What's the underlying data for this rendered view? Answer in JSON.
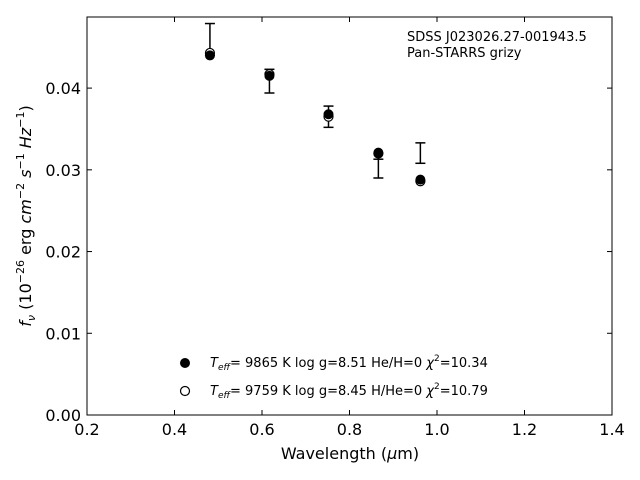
{
  "chart_data": {
    "type": "scatter",
    "xlabel_prefix": "Wavelength (",
    "xlabel_mu": "μ",
    "xlabel_suffix": "m)",
    "ylabel": {
      "f": "f",
      "nu": "ν",
      "open": " (10",
      "exp1": "−26",
      "erg": " erg ",
      "cm": "cm",
      "exp2": "−2",
      "s": " s",
      "exp3": "−1",
      "hz": " Hz",
      "exp4": "−1",
      "close": ")"
    },
    "xlim": [
      0.2,
      1.4
    ],
    "ylim": [
      0.0,
      0.0487
    ],
    "xticks": [
      "0.2",
      "0.4",
      "0.6",
      "0.8",
      "1.0",
      "1.2",
      "1.4"
    ],
    "yticks": [
      "0.00",
      "0.01",
      "0.02",
      "0.03",
      "0.04"
    ],
    "annotation_lines": [
      "SDSS J023026.27-001943.5",
      "Pan-STARRS grizy"
    ],
    "observed": {
      "x": [
        0.481,
        0.617,
        0.752,
        0.866,
        0.962
      ],
      "y_low": [
        0.044,
        0.0394,
        0.0352,
        0.029,
        0.0308
      ],
      "y_high": [
        0.0479,
        0.0423,
        0.0378,
        0.0313,
        0.0333
      ]
    },
    "series": [
      {
        "marker": "filled",
        "x": [
          0.481,
          0.617,
          0.752,
          0.866,
          0.962
        ],
        "values": [
          0.044,
          0.0415,
          0.0368,
          0.0321,
          0.0288
        ],
        "legend_parts": {
          "t": "T",
          "sub": "eff",
          "rest": "=  9865 K  log g=8.51  He/H=0  ",
          "chi": "χ",
          "sup": "2",
          "chival": "=10.34"
        }
      },
      {
        "marker": "open",
        "x": [
          0.481,
          0.617,
          0.752,
          0.866,
          0.962
        ],
        "values": [
          0.0443,
          0.0417,
          0.0365,
          0.032,
          0.0286
        ],
        "legend_parts": {
          "t": "T",
          "sub": "eff",
          "rest": "=  9759 K  log g=8.45  H/He=0  ",
          "chi": "χ",
          "sup": "2",
          "chival": "=10.79"
        }
      }
    ],
    "grid": false,
    "legend_position": "lower-center"
  }
}
